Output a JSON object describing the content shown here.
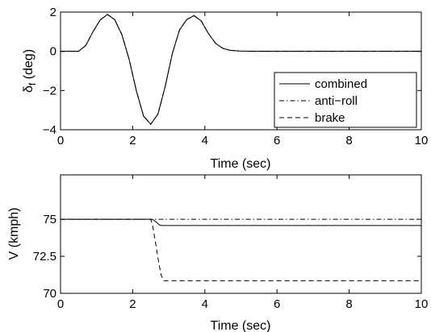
{
  "chart_data": [
    {
      "type": "line",
      "xlabel": "Time (sec)",
      "ylabel": "δ",
      "ylabel_subscript": "f",
      "ylabel_unit": " (deg)",
      "xlim": [
        0,
        10
      ],
      "ylim": [
        -4,
        2
      ],
      "xticks": [
        0,
        2,
        4,
        6,
        8,
        10
      ],
      "xtick_labels": [
        "0",
        "2",
        "4",
        "6",
        "8",
        "10"
      ],
      "yticks": [
        -4,
        -2,
        0,
        2
      ],
      "ytick_labels": [
        "−4",
        "−2",
        "0",
        "2"
      ],
      "grid": false,
      "legend_position": "bottom-right",
      "series": [
        {
          "name": "combined",
          "style": "solid",
          "x": [
            0,
            0.5,
            0.7,
            0.9,
            1.1,
            1.3,
            1.5,
            1.7,
            1.9,
            2.1,
            2.3,
            2.5,
            2.7,
            2.9,
            3.1,
            3.3,
            3.5,
            3.7,
            3.9,
            4.1,
            4.3,
            4.5,
            4.7,
            5.0,
            5.3,
            5.6,
            6,
            7,
            8,
            9,
            10
          ],
          "values": [
            0,
            0,
            0.3,
            1.0,
            1.6,
            1.88,
            1.62,
            0.85,
            -0.4,
            -2.0,
            -3.3,
            -3.72,
            -3.2,
            -1.8,
            -0.1,
            1.1,
            1.62,
            1.82,
            1.55,
            0.9,
            0.4,
            0.15,
            0.05,
            0.01,
            0,
            0,
            0,
            0,
            0,
            0,
            0
          ]
        },
        {
          "name": "anti−roll",
          "style": "dashdot",
          "x": [
            0,
            0.5,
            0.7,
            0.9,
            1.1,
            1.3,
            1.5,
            1.7,
            1.9,
            2.1,
            2.3,
            2.5,
            2.7,
            2.9,
            3.1,
            3.3,
            3.5,
            3.7,
            3.9,
            4.1,
            4.3,
            4.5,
            4.7,
            5.0,
            5.3,
            5.6,
            6,
            7,
            8,
            9,
            10
          ],
          "values": [
            0,
            0,
            0.3,
            1.0,
            1.6,
            1.88,
            1.62,
            0.85,
            -0.4,
            -2.0,
            -3.3,
            -3.72,
            -3.2,
            -1.8,
            -0.1,
            1.1,
            1.62,
            1.82,
            1.55,
            0.9,
            0.4,
            0.15,
            0.05,
            0.01,
            0,
            0,
            0,
            0,
            0,
            0,
            0
          ]
        },
        {
          "name": "brake",
          "style": "dashed",
          "x": [
            0,
            0.5,
            0.7,
            0.9,
            1.1,
            1.3,
            1.5,
            1.7,
            1.9,
            2.1,
            2.3,
            2.5,
            2.7,
            2.9,
            3.1,
            3.3,
            3.5,
            3.7,
            3.9,
            4.1,
            4.3,
            4.5,
            4.7,
            5.0,
            5.3,
            5.6,
            6,
            7,
            8,
            9,
            10
          ],
          "values": [
            0,
            0,
            0.3,
            1.0,
            1.6,
            1.88,
            1.62,
            0.85,
            -0.4,
            -2.0,
            -3.3,
            -3.72,
            -3.2,
            -1.8,
            -0.1,
            1.1,
            1.62,
            1.82,
            1.55,
            0.9,
            0.4,
            0.15,
            0.05,
            0.01,
            0,
            0,
            0,
            0,
            0,
            0,
            0
          ]
        }
      ]
    },
    {
      "type": "line",
      "xlabel": "Time (sec)",
      "ylabel": "V (kmph)",
      "xlim": [
        0,
        10
      ],
      "ylim": [
        70,
        78
      ],
      "xticks": [
        0,
        2,
        4,
        6,
        8,
        10
      ],
      "xtick_labels": [
        "0",
        "2",
        "4",
        "6",
        "8",
        "10"
      ],
      "yticks": [
        70,
        72.5,
        75
      ],
      "ytick_labels": [
        "70",
        "72.5",
        "75"
      ],
      "grid": false,
      "series": [
        {
          "style": "solid",
          "x": [
            0,
            2.5,
            2.58,
            2.66,
            2.74,
            2.82,
            3.0,
            10
          ],
          "values": [
            75,
            75,
            74.95,
            74.8,
            74.62,
            74.58,
            74.58,
            74.58
          ]
        },
        {
          "style": "dashdot",
          "x": [
            0,
            10
          ],
          "values": [
            75,
            75
          ]
        },
        {
          "style": "dashed",
          "x": [
            0,
            2.5,
            2.55,
            2.62,
            2.7,
            2.78,
            2.85,
            10
          ],
          "values": [
            75,
            75,
            74.6,
            73.6,
            72.4,
            71.3,
            70.85,
            70.85
          ]
        }
      ]
    }
  ]
}
